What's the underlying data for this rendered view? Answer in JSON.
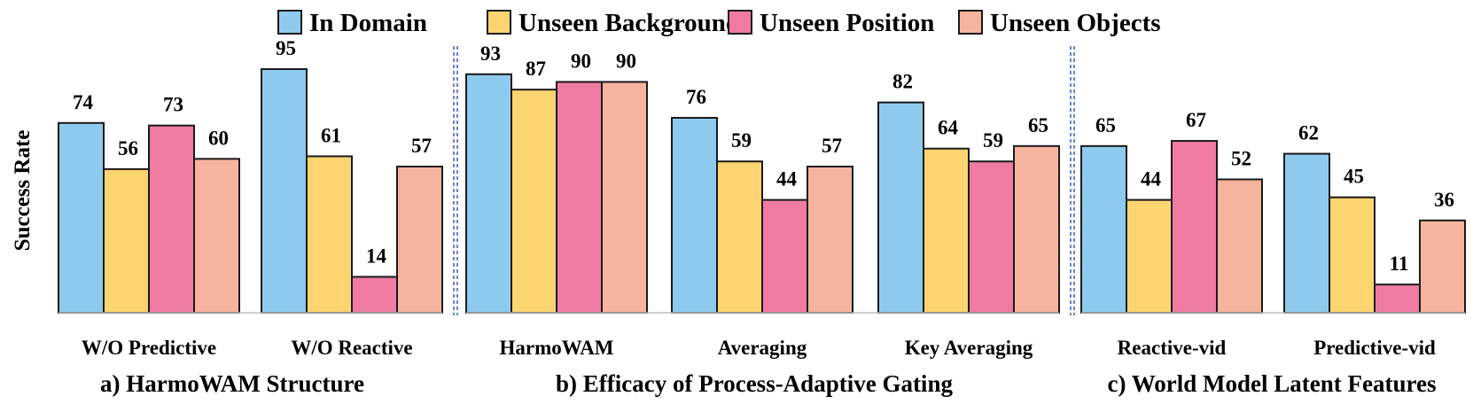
{
  "chart_data": {
    "type": "bar",
    "title": "",
    "ylabel": "Success Rate",
    "xlabel": "",
    "ylim": [
      0,
      100
    ],
    "grid": false,
    "legend_position": "top",
    "series_meta": [
      {
        "name": "In Domain",
        "color": "#8ecaee"
      },
      {
        "name": "Unseen Background",
        "color": "#fdd570"
      },
      {
        "name": "Unseen Position",
        "color": "#ef7ba3"
      },
      {
        "name": "Unseen Objects",
        "color": "#f6b39e"
      }
    ],
    "groups": [
      {
        "title": "a) HarmoWAM Structure",
        "categories": [
          {
            "label": "W/O Predictive",
            "values": [
              74,
              56,
              73,
              60
            ]
          },
          {
            "label": "W/O Reactive",
            "values": [
              95,
              61,
              14,
              57
            ]
          }
        ]
      },
      {
        "title": "b) Efficacy of Process-Adaptive Gating",
        "categories": [
          {
            "label": "HarmoWAM",
            "values": [
              93,
              87,
              90,
              90
            ]
          },
          {
            "label": "Averaging",
            "values": [
              76,
              59,
              44,
              57
            ]
          },
          {
            "label": "Key Averaging",
            "values": [
              82,
              64,
              59,
              65
            ]
          }
        ]
      },
      {
        "title": "c) World Model Latent Features",
        "categories": [
          {
            "label": "Reactive-vid",
            "values": [
              65,
              44,
              67,
              52
            ]
          },
          {
            "label": "Predictive-vid",
            "values": [
              62,
              45,
              11,
              36
            ]
          }
        ]
      }
    ]
  }
}
